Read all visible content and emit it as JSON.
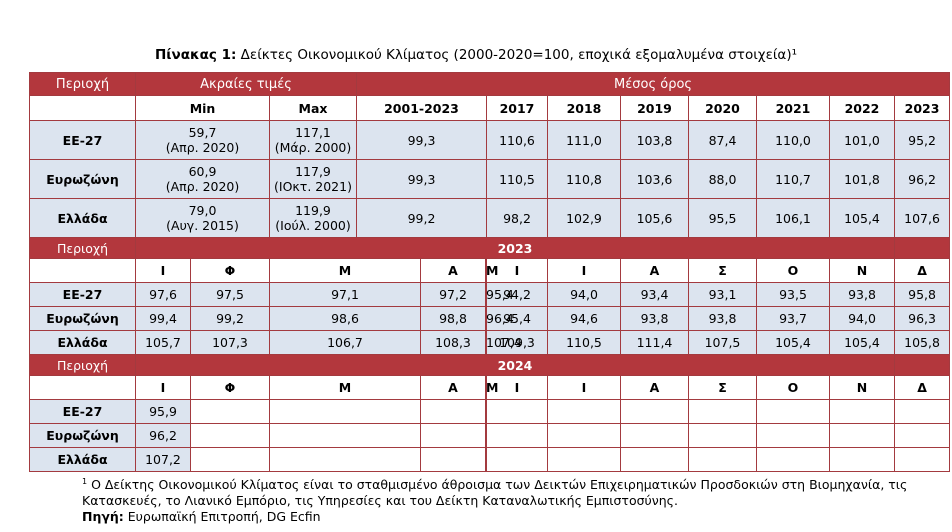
{
  "caption": {
    "label": "Πίνακας 1:",
    "text": "Δείκτες Οικονομικού Κλίματος (2000-2020=100, εποχικά εξομαλυμένα στοιχεία)¹"
  },
  "annual": {
    "region_header": "Περιοχή",
    "extremes_header": "Ακραίες τιμές",
    "average_header": "Μέσος όρος",
    "min_label": "Min",
    "max_label": "Max",
    "columns": [
      "2001-2023",
      "2017",
      "2018",
      "2019",
      "2020",
      "2021",
      "2022",
      "2023"
    ],
    "rows": [
      {
        "region": "ΕΕ-27",
        "min_value": "59,7",
        "min_date": "(Απρ. 2020)",
        "max_value": "117,1",
        "max_date": "(Μάρ. 2000)",
        "values": [
          "99,3",
          "110,6",
          "111,0",
          "103,8",
          "87,4",
          "110,0",
          "101,0",
          "95,2"
        ]
      },
      {
        "region": "Ευρωζώνη",
        "min_value": "60,9",
        "min_date": "(Απρ. 2020)",
        "max_value": "117,9",
        "max_date": "(ΙΟκτ. 2021)",
        "values": [
          "99,3",
          "110,5",
          "110,8",
          "103,6",
          "88,0",
          "110,7",
          "101,8",
          "96,2"
        ]
      },
      {
        "region": "Ελλάδα",
        "min_value": "79,0",
        "min_date": "(Αυγ. 2015)",
        "max_value": "119,9",
        "max_date": "(Ιούλ. 2000)",
        "values": [
          "99,2",
          "98,2",
          "102,9",
          "105,6",
          "95,5",
          "106,1",
          "105,4",
          "107,6"
        ]
      }
    ]
  },
  "monthly_2023": {
    "region_header": "Περιοχή",
    "year": "2023",
    "months": [
      "Ι",
      "Φ",
      "Μ",
      "Α",
      "Μ",
      "Ι",
      "Ι",
      "Α",
      "Σ",
      "Ο",
      "Ν",
      "Δ"
    ],
    "rows": [
      {
        "region": "ΕΕ-27",
        "values": [
          "97,6",
          "97,5",
          "97,1",
          "97,2",
          "95,4",
          "94,2",
          "94,0",
          "93,4",
          "93,1",
          "93,5",
          "93,8",
          "95,8"
        ]
      },
      {
        "region": "Ευρωζώνη",
        "values": [
          "99,4",
          "99,2",
          "98,6",
          "98,8",
          "96,4",
          "95,4",
          "94,6",
          "93,8",
          "93,8",
          "93,7",
          "94,0",
          "96,3"
        ]
      },
      {
        "region": "Ελλάδα",
        "values": [
          "105,7",
          "107,3",
          "106,7",
          "108,3",
          "107,4",
          "109,3",
          "110,5",
          "111,4",
          "107,5",
          "105,4",
          "105,4",
          "105,8"
        ]
      }
    ]
  },
  "monthly_2024": {
    "region_header": "Περιοχή",
    "year": "2024",
    "months": [
      "Ι",
      "Φ",
      "Μ",
      "Α",
      "Μ",
      "Ι",
      "Ι",
      "Α",
      "Σ",
      "Ο",
      "Ν",
      "Δ"
    ],
    "rows": [
      {
        "region": "ΕΕ-27",
        "values": [
          "95,9",
          "",
          "",
          "",
          "",
          "",
          "",
          "",
          "",
          "",
          "",
          ""
        ]
      },
      {
        "region": "Ευρωζώνη",
        "values": [
          "96,2",
          "",
          "",
          "",
          "",
          "",
          "",
          "",
          "",
          "",
          "",
          ""
        ]
      },
      {
        "region": "Ελλάδα",
        "values": [
          "107,2",
          "",
          "",
          "",
          "",
          "",
          "",
          "",
          "",
          "",
          "",
          ""
        ]
      }
    ]
  },
  "footnote": {
    "marker": "1",
    "text": " Ο Δείκτης Οικονομικού Κλίματος είναι το σταθμισμένο άθροισμα των Δεικτών Επιχειρηματικών Προσδοκιών στη Βιομηχανία, τις Κατασκευές, το Λιανικό Εμπόριο, τις Υπηρεσίες και του Δείκτη Καταναλωτικής Εμπιστοσύνης.",
    "source_label": "Πηγή:",
    "source_text": " Ευρωπαϊκή Επιτροπή, DG Ecfin"
  }
}
